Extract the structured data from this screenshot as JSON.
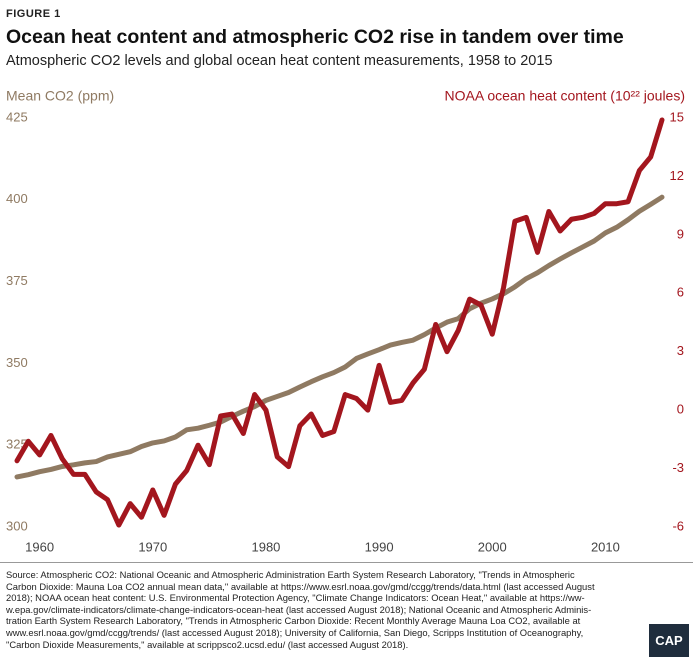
{
  "header": {
    "figure": "FIGURE 1"
  },
  "chart_data": {
    "type": "line",
    "title": "Ocean heat content and atmospheric CO2 rise in tandem over time",
    "subtitle": "Atmospheric CO2 levels and global ocean heat content measurements, 1958 to 2015",
    "y_label": "Mean CO2 (ppm)",
    "y2_label": "NOAA ocean heat content (10²² joules)",
    "x": [
      1958,
      1959,
      1960,
      1961,
      1962,
      1963,
      1964,
      1965,
      1966,
      1967,
      1968,
      1969,
      1970,
      1971,
      1972,
      1973,
      1974,
      1975,
      1976,
      1977,
      1978,
      1979,
      1980,
      1981,
      1982,
      1983,
      1984,
      1985,
      1986,
      1987,
      1988,
      1989,
      1990,
      1991,
      1992,
      1993,
      1994,
      1995,
      1996,
      1997,
      1998,
      1999,
      2000,
      2001,
      2002,
      2003,
      2004,
      2005,
      2006,
      2007,
      2008,
      2009,
      2010,
      2011,
      2012,
      2013,
      2014,
      2015
    ],
    "xlim": [
      1958,
      2015
    ],
    "xticks": [
      1960,
      1970,
      1980,
      1990,
      2000,
      2010
    ],
    "ylim": [
      300,
      425
    ],
    "yticks": [
      300,
      325,
      350,
      375,
      400,
      425
    ],
    "y2lim": [
      -6,
      15
    ],
    "y2ticks": [
      -6,
      -3,
      0,
      3,
      6,
      9,
      12,
      15
    ],
    "series": [
      {
        "name": "Mean CO2 (ppm)",
        "color": "#8f7a62",
        "axis": "y",
        "values": [
          315.3,
          316.0,
          316.9,
          317.6,
          318.5,
          319.0,
          319.6,
          320.0,
          321.4,
          322.2,
          323.0,
          324.6,
          325.7,
          326.3,
          327.5,
          329.7,
          330.2,
          331.1,
          332.1,
          333.8,
          335.4,
          336.8,
          338.7,
          339.9,
          341.1,
          342.8,
          344.4,
          345.9,
          347.2,
          348.9,
          351.5,
          352.9,
          354.2,
          355.6,
          356.4,
          357.1,
          358.8,
          360.8,
          362.6,
          363.7,
          366.7,
          368.4,
          369.7,
          371.3,
          373.4,
          375.9,
          377.7,
          379.9,
          381.9,
          383.8,
          385.6,
          387.4,
          389.9,
          391.6,
          393.9,
          396.5,
          398.6,
          400.8
        ]
      },
      {
        "name": "NOAA ocean heat content (10²² joules)",
        "color": "#a3161e",
        "axis": "y2",
        "values": [
          -2.6,
          -1.6,
          -2.3,
          -1.3,
          -2.5,
          -3.3,
          -3.3,
          -4.2,
          -4.6,
          -5.9,
          -4.8,
          -5.5,
          -4.1,
          -5.4,
          -3.8,
          -3.1,
          -1.8,
          -2.8,
          -0.3,
          -0.2,
          -1.2,
          0.8,
          0.0,
          -2.4,
          -2.9,
          -0.8,
          -0.2,
          -1.3,
          -1.1,
          0.8,
          0.6,
          0.0,
          2.3,
          0.4,
          0.5,
          1.4,
          2.1,
          4.4,
          3.0,
          4.1,
          5.7,
          5.4,
          3.9,
          6.3,
          9.7,
          9.9,
          8.1,
          10.2,
          9.2,
          9.8,
          9.9,
          10.1,
          10.6,
          10.6,
          10.7,
          12.3,
          13.0,
          14.9
        ]
      }
    ]
  },
  "source": {
    "lines": [
      "Source: Atmospheric CO2: National Oceanic and Atmospheric Administration Earth System Research Laboratory, \"Trends in Atmospheric",
      "Carbon Dioxide: Mauna Loa CO2 annual mean data,\" available at https://www.esrl.noaa.gov/gmd/ccgg/trends/data.html (last accessed August",
      "2018); NOAA ocean heat content: U.S. Environmental Protection Agency, \"Climate Change Indicators: Ocean Heat,\" available at https://ww-",
      "w.epa.gov/climate-indicators/climate-change-indicators-ocean-heat (last accessed August 2018); National Oceanic and Atmospheric Adminis-",
      "tration Earth System Research Laboratory, \"Trends in Atmospheric Carbon Dioxide: Recent Monthly Average Mauna Loa CO2, available at",
      "www.esrl.noaa.gov/gmd/ccgg/trends/ (last accessed August 2018); University of California, San Diego, Scripps Institution of Oceanography,",
      "\"Carbon Dioxide Measurements,\" available at scrippsco2.ucsd.edu/ (last accessed August 2018)."
    ],
    "logo": "CAP"
  }
}
